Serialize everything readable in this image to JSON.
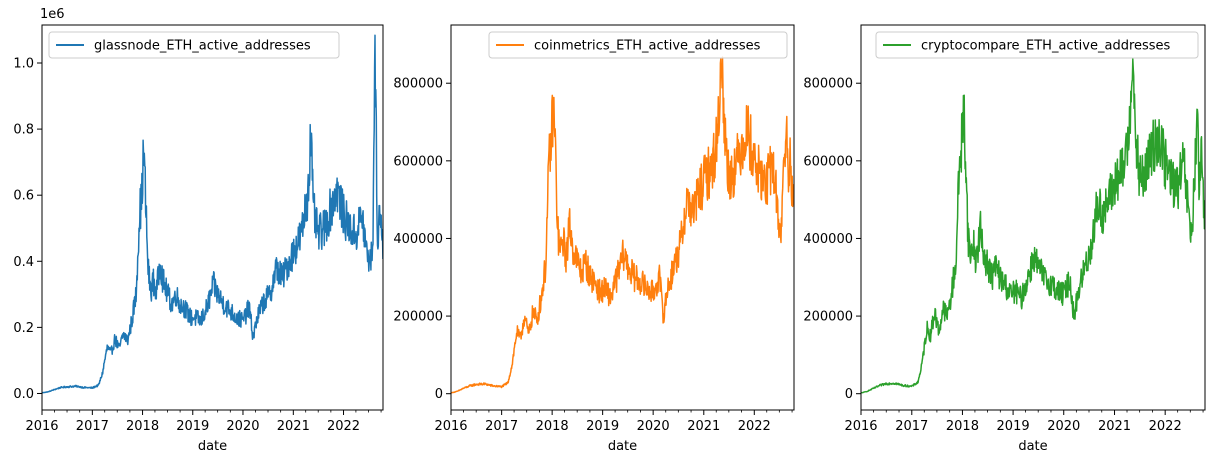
{
  "chart_data": [
    {
      "type": "line",
      "xlabel": "date",
      "ylabel": "",
      "x_ticks": [
        "2016",
        "2017",
        "2018",
        "2019",
        "2020",
        "2021",
        "2022"
      ],
      "xlim": [
        "2016-01-01",
        "2022-10-15"
      ],
      "ylim": [
        -50000,
        1115000
      ],
      "y_ticks": [
        0,
        200000,
        400000,
        600000,
        800000,
        1000000
      ],
      "y_tick_labels": [
        "0.0",
        "0.2",
        "0.4",
        "0.6",
        "0.8",
        "1.0"
      ],
      "y_offset_text": "1e6",
      "legend_position": "upper left",
      "series": [
        {
          "name": "glassnode_ETH_active_addresses",
          "color": "#1f77b4",
          "points": [
            [
              "2016-01-01",
              2000
            ],
            [
              "2016-02-15",
              5000
            ],
            [
              "2016-04-01",
              12000
            ],
            [
              "2016-05-15",
              18000
            ],
            [
              "2016-07-01",
              20000
            ],
            [
              "2016-09-01",
              22000
            ],
            [
              "2016-11-01",
              18000
            ],
            [
              "2017-01-01",
              17000
            ],
            [
              "2017-02-15",
              25000
            ],
            [
              "2017-03-15",
              60000
            ],
            [
              "2017-04-01",
              100000
            ],
            [
              "2017-04-20",
              140000
            ],
            [
              "2017-05-15",
              120000
            ],
            [
              "2017-06-15",
              165000
            ],
            [
              "2017-07-15",
              135000
            ],
            [
              "2017-08-15",
              180000
            ],
            [
              "2017-09-15",
              160000
            ],
            [
              "2017-10-15",
              220000
            ],
            [
              "2017-11-15",
              300000
            ],
            [
              "2017-12-10",
              550000
            ],
            [
              "2017-12-25",
              580000
            ],
            [
              "2018-01-05",
              700000
            ],
            [
              "2018-01-12",
              720000
            ],
            [
              "2018-01-25",
              560000
            ],
            [
              "2018-02-10",
              380000
            ],
            [
              "2018-03-01",
              310000
            ],
            [
              "2018-03-20",
              340000
            ],
            [
              "2018-04-10",
              300000
            ],
            [
              "2018-05-10",
              400000
            ],
            [
              "2018-05-25",
              350000
            ],
            [
              "2018-06-15",
              320000
            ],
            [
              "2018-08-01",
              270000
            ],
            [
              "2018-09-01",
              300000
            ],
            [
              "2018-10-01",
              270000
            ],
            [
              "2018-11-01",
              260000
            ],
            [
              "2018-12-15",
              230000
            ],
            [
              "2019-01-15",
              230000
            ],
            [
              "2019-03-01",
              220000
            ],
            [
              "2019-04-15",
              260000
            ],
            [
              "2019-06-01",
              330000
            ],
            [
              "2019-07-01",
              300000
            ],
            [
              "2019-08-15",
              270000
            ],
            [
              "2019-10-01",
              250000
            ],
            [
              "2019-11-15",
              230000
            ],
            [
              "2020-01-01",
              220000
            ],
            [
              "2020-02-15",
              260000
            ],
            [
              "2020-03-15",
              170000
            ],
            [
              "2020-04-15",
              230000
            ],
            [
              "2020-06-01",
              280000
            ],
            [
              "2020-07-15",
              300000
            ],
            [
              "2020-09-01",
              380000
            ],
            [
              "2020-10-15",
              350000
            ],
            [
              "2020-12-01",
              400000
            ],
            [
              "2021-01-15",
              440000
            ],
            [
              "2021-03-01",
              480000
            ],
            [
              "2021-04-15",
              600000
            ],
            [
              "2021-05-10",
              790000
            ],
            [
              "2021-05-25",
              560000
            ],
            [
              "2021-07-01",
              480000
            ],
            [
              "2021-08-15",
              500000
            ],
            [
              "2021-10-01",
              560000
            ],
            [
              "2021-11-15",
              620000
            ],
            [
              "2022-01-01",
              540000
            ],
            [
              "2022-02-15",
              500000
            ],
            [
              "2022-04-01",
              480000
            ],
            [
              "2022-05-15",
              540000
            ],
            [
              "2022-06-20",
              420000
            ],
            [
              "2022-07-20",
              400000
            ],
            [
              "2022-08-05",
              500000
            ],
            [
              "2022-08-15",
              1060000
            ],
            [
              "2022-08-25",
              820000
            ],
            [
              "2022-09-05",
              450000
            ],
            [
              "2022-09-20",
              560000
            ],
            [
              "2022-10-01",
              500000
            ],
            [
              "2022-10-15",
              450000
            ]
          ]
        }
      ]
    },
    {
      "type": "line",
      "xlabel": "date",
      "ylabel": "",
      "x_ticks": [
        "2016",
        "2017",
        "2018",
        "2019",
        "2020",
        "2021",
        "2022"
      ],
      "xlim": [
        "2016-01-01",
        "2022-10-15"
      ],
      "ylim": [
        -42000,
        950000
      ],
      "y_ticks": [
        0,
        200000,
        400000,
        600000,
        800000
      ],
      "y_tick_labels": [
        "0",
        "200000",
        "400000",
        "600000",
        "800000"
      ],
      "legend_position": "upper right",
      "series": [
        {
          "name": "coinmetrics_ETH_active_addresses",
          "color": "#ff7f0e",
          "points": [
            [
              "2016-01-01",
              2000
            ],
            [
              "2016-02-15",
              6000
            ],
            [
              "2016-04-01",
              14000
            ],
            [
              "2016-05-15",
              20000
            ],
            [
              "2016-07-01",
              24000
            ],
            [
              "2016-09-01",
              25000
            ],
            [
              "2016-11-01",
              20000
            ],
            [
              "2017-01-01",
              18000
            ],
            [
              "2017-02-15",
              28000
            ],
            [
              "2017-03-15",
              70000
            ],
            [
              "2017-04-01",
              110000
            ],
            [
              "2017-04-20",
              160000
            ],
            [
              "2017-05-15",
              140000
            ],
            [
              "2017-06-15",
              200000
            ],
            [
              "2017-07-15",
              150000
            ],
            [
              "2017-08-15",
              210000
            ],
            [
              "2017-09-15",
              190000
            ],
            [
              "2017-10-15",
              250000
            ],
            [
              "2017-11-15",
              330000
            ],
            [
              "2017-12-10",
              600000
            ],
            [
              "2017-12-25",
              650000
            ],
            [
              "2018-01-05",
              720000
            ],
            [
              "2018-01-12",
              735000
            ],
            [
              "2018-01-25",
              620000
            ],
            [
              "2018-02-10",
              420000
            ],
            [
              "2018-03-01",
              360000
            ],
            [
              "2018-03-20",
              400000
            ],
            [
              "2018-04-10",
              350000
            ],
            [
              "2018-05-10",
              440000
            ],
            [
              "2018-05-25",
              380000
            ],
            [
              "2018-06-15",
              360000
            ],
            [
              "2018-08-01",
              310000
            ],
            [
              "2018-09-01",
              340000
            ],
            [
              "2018-10-01",
              300000
            ],
            [
              "2018-11-01",
              290000
            ],
            [
              "2018-12-15",
              260000
            ],
            [
              "2019-01-15",
              270000
            ],
            [
              "2019-03-01",
              250000
            ],
            [
              "2019-04-15",
              300000
            ],
            [
              "2019-06-01",
              360000
            ],
            [
              "2019-07-01",
              330000
            ],
            [
              "2019-08-15",
              300000
            ],
            [
              "2019-10-01",
              290000
            ],
            [
              "2019-11-15",
              270000
            ],
            [
              "2020-01-01",
              260000
            ],
            [
              "2020-02-15",
              300000
            ],
            [
              "2020-03-15",
              200000
            ],
            [
              "2020-04-15",
              270000
            ],
            [
              "2020-06-01",
              330000
            ],
            [
              "2020-07-15",
              380000
            ],
            [
              "2020-09-01",
              500000
            ],
            [
              "2020-10-15",
              470000
            ],
            [
              "2020-12-01",
              520000
            ],
            [
              "2021-01-15",
              560000
            ],
            [
              "2021-03-01",
              580000
            ],
            [
              "2021-04-15",
              680000
            ],
            [
              "2021-05-10",
              900000
            ],
            [
              "2021-05-25",
              700000
            ],
            [
              "2021-07-01",
              560000
            ],
            [
              "2021-08-15",
              580000
            ],
            [
              "2021-10-01",
              640000
            ],
            [
              "2021-11-15",
              680000
            ],
            [
              "2022-01-01",
              600000
            ],
            [
              "2022-02-15",
              560000
            ],
            [
              "2022-04-01",
              540000
            ],
            [
              "2022-05-15",
              600000
            ],
            [
              "2022-06-20",
              470000
            ],
            [
              "2022-07-10",
              400000
            ],
            [
              "2022-08-05",
              600000
            ],
            [
              "2022-08-20",
              690000
            ],
            [
              "2022-09-05",
              520000
            ],
            [
              "2022-09-20",
              640000
            ],
            [
              "2022-10-01",
              520000
            ],
            [
              "2022-10-15",
              480000
            ]
          ]
        }
      ]
    },
    {
      "type": "line",
      "xlabel": "date",
      "ylabel": "",
      "x_ticks": [
        "2016",
        "2017",
        "2018",
        "2019",
        "2020",
        "2021",
        "2022"
      ],
      "xlim": [
        "2016-01-01",
        "2022-10-15"
      ],
      "ylim": [
        -42000,
        950000
      ],
      "y_ticks": [
        0,
        200000,
        400000,
        600000,
        800000
      ],
      "y_tick_labels": [
        "0",
        "200000",
        "400000",
        "600000",
        "800000"
      ],
      "legend_position": "upper right",
      "series": [
        {
          "name": "cryptocompare_ETH_active_addresses",
          "color": "#2ca02c",
          "points": [
            [
              "2016-01-01",
              2000
            ],
            [
              "2016-02-15",
              6000
            ],
            [
              "2016-04-01",
              14000
            ],
            [
              "2016-05-15",
              21000
            ],
            [
              "2016-07-01",
              26000
            ],
            [
              "2016-09-01",
              27000
            ],
            [
              "2016-11-01",
              21000
            ],
            [
              "2017-01-01",
              19000
            ],
            [
              "2017-02-15",
              30000
            ],
            [
              "2017-03-15",
              75000
            ],
            [
              "2017-04-01",
              120000
            ],
            [
              "2017-04-20",
              170000
            ],
            [
              "2017-05-15",
              150000
            ],
            [
              "2017-06-15",
              210000
            ],
            [
              "2017-07-15",
              160000
            ],
            [
              "2017-08-15",
              220000
            ],
            [
              "2017-09-15",
              200000
            ],
            [
              "2017-10-15",
              260000
            ],
            [
              "2017-11-15",
              340000
            ],
            [
              "2017-12-10",
              590000
            ],
            [
              "2017-12-25",
              640000
            ],
            [
              "2018-01-05",
              710000
            ],
            [
              "2018-01-12",
              730000
            ],
            [
              "2018-01-25",
              600000
            ],
            [
              "2018-02-10",
              410000
            ],
            [
              "2018-03-01",
              350000
            ],
            [
              "2018-03-20",
              390000
            ],
            [
              "2018-04-10",
              340000
            ],
            [
              "2018-05-10",
              430000
            ],
            [
              "2018-05-25",
              370000
            ],
            [
              "2018-06-15",
              350000
            ],
            [
              "2018-08-01",
              300000
            ],
            [
              "2018-09-01",
              330000
            ],
            [
              "2018-10-01",
              295000
            ],
            [
              "2018-11-01",
              285000
            ],
            [
              "2018-12-15",
              255000
            ],
            [
              "2019-01-15",
              265000
            ],
            [
              "2019-03-01",
              245000
            ],
            [
              "2019-04-15",
              295000
            ],
            [
              "2019-06-01",
              355000
            ],
            [
              "2019-07-01",
              325000
            ],
            [
              "2019-08-15",
              295000
            ],
            [
              "2019-10-01",
              285000
            ],
            [
              "2019-11-15",
              265000
            ],
            [
              "2020-01-01",
              255000
            ],
            [
              "2020-02-15",
              295000
            ],
            [
              "2020-03-15",
              195000
            ],
            [
              "2020-04-15",
              265000
            ],
            [
              "2020-06-01",
              325000
            ],
            [
              "2020-07-15",
              375000
            ],
            [
              "2020-09-01",
              490000
            ],
            [
              "2020-10-15",
              460000
            ],
            [
              "2020-12-01",
              510000
            ],
            [
              "2021-01-15",
              550000
            ],
            [
              "2021-03-01",
              570000
            ],
            [
              "2021-04-15",
              670000
            ],
            [
              "2021-05-10",
              890000
            ],
            [
              "2021-05-25",
              690000
            ],
            [
              "2021-07-01",
              550000
            ],
            [
              "2021-08-15",
              570000
            ],
            [
              "2021-10-01",
              630000
            ],
            [
              "2021-11-15",
              670000
            ],
            [
              "2022-01-01",
              590000
            ],
            [
              "2022-02-15",
              550000
            ],
            [
              "2022-04-01",
              530000
            ],
            [
              "2022-05-15",
              590000
            ],
            [
              "2022-06-20",
              460000
            ],
            [
              "2022-07-10",
              395000
            ],
            [
              "2022-08-05",
              590000
            ],
            [
              "2022-08-20",
              690000
            ],
            [
              "2022-09-05",
              510000
            ],
            [
              "2022-09-20",
              630000
            ],
            [
              "2022-10-01",
              510000
            ],
            [
              "2022-10-15",
              470000
            ]
          ]
        }
      ]
    }
  ]
}
